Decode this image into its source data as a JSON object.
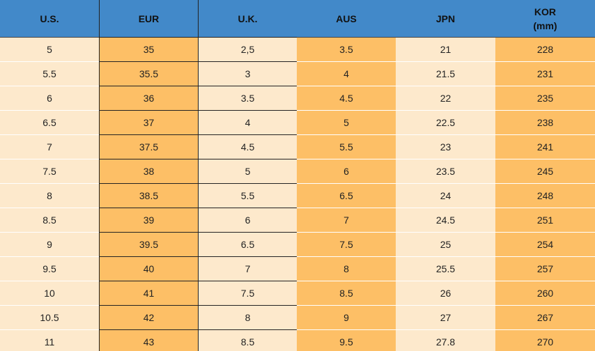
{
  "table": {
    "headers": [
      "U.S.",
      "EUR",
      "U.K.",
      "AUS",
      "JPN",
      "KOR\n(mm)"
    ],
    "rows": [
      [
        "5",
        "35",
        "2,5",
        "3.5",
        "21",
        "228"
      ],
      [
        "5.5",
        "35.5",
        "3",
        "4",
        "21.5",
        "231"
      ],
      [
        "6",
        "36",
        "3.5",
        "4.5",
        "22",
        "235"
      ],
      [
        "6.5",
        "37",
        "4",
        "5",
        "22.5",
        "238"
      ],
      [
        "7",
        "37.5",
        "4.5",
        "5.5",
        "23",
        "241"
      ],
      [
        "7.5",
        "38",
        "5",
        "6",
        "23.5",
        "245"
      ],
      [
        "8",
        "38.5",
        "5.5",
        "6.5",
        "24",
        "248"
      ],
      [
        "8.5",
        "39",
        "6",
        "7",
        "24.5",
        "251"
      ],
      [
        "9",
        "39.5",
        "6.5",
        "7.5",
        "25",
        "254"
      ],
      [
        "9.5",
        "40",
        "7",
        "8",
        "25.5",
        "257"
      ],
      [
        "10",
        "41",
        "7.5",
        "8.5",
        "26",
        "260"
      ],
      [
        "10.5",
        "42",
        "8",
        "9",
        "27",
        "267"
      ],
      [
        "11",
        "43",
        "8.5",
        "9.5",
        "27.8",
        "270"
      ]
    ]
  }
}
